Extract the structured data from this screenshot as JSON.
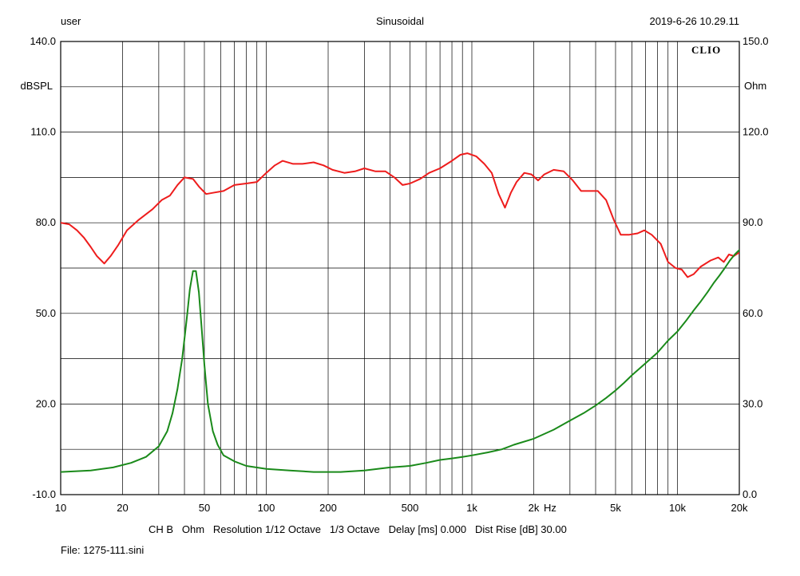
{
  "header": {
    "user": "user",
    "mode": "Sinusoidal",
    "datetime": "2019-6-26 10.29.11",
    "logo": "CLIO"
  },
  "footer": {
    "settings": "CH B   Ohm   Resolution 1/12 Octave   1/3 Octave   Delay [ms] 0.000   Dist Rise [dB] 30.00",
    "file": "File: 1275-111.sini"
  },
  "chart_data": {
    "type": "line",
    "x_scale": "log",
    "xlim": [
      10,
      20000
    ],
    "x_ticks": [
      {
        "value": 10,
        "label": "10"
      },
      {
        "value": 20,
        "label": "20"
      },
      {
        "value": 50,
        "label": "50"
      },
      {
        "value": 100,
        "label": "100"
      },
      {
        "value": 200,
        "label": "200"
      },
      {
        "value": 500,
        "label": "500"
      },
      {
        "value": 1000,
        "label": "1k"
      },
      {
        "value": 2000,
        "label": "2k"
      },
      {
        "value": 5000,
        "label": "5k"
      },
      {
        "value": 10000,
        "label": "10k"
      },
      {
        "value": 20000,
        "label": "20k"
      }
    ],
    "x_unit_label": "Hz",
    "y_left": {
      "label": "dBSPL",
      "lim": [
        -10,
        140
      ],
      "ticks": [
        "-10.0",
        "20.0",
        "50.0",
        "80.0",
        "110.0",
        "140.0"
      ]
    },
    "y_right": {
      "label": "Ohm",
      "lim": [
        0,
        150
      ],
      "ticks": [
        "0.0",
        "30.0",
        "60.0",
        "90.0",
        "120.0",
        "150.0"
      ]
    },
    "grid": true,
    "series": [
      {
        "axis": "left",
        "color": "#ee1c1c",
        "points": [
          [
            10,
            80
          ],
          [
            11,
            79.5
          ],
          [
            12,
            77.5
          ],
          [
            13,
            75
          ],
          [
            14,
            72
          ],
          [
            15,
            69
          ],
          [
            16.3,
            66.5
          ],
          [
            17.5,
            69
          ],
          [
            19,
            72.5
          ],
          [
            21,
            77.5
          ],
          [
            24,
            81
          ],
          [
            28,
            84.5
          ],
          [
            31,
            87.5
          ],
          [
            34,
            89
          ],
          [
            37,
            92.5
          ],
          [
            40,
            95
          ],
          [
            44,
            94.5
          ],
          [
            47,
            92
          ],
          [
            51,
            89.5
          ],
          [
            56,
            90
          ],
          [
            62,
            90.5
          ],
          [
            70,
            92.5
          ],
          [
            80,
            93
          ],
          [
            90,
            93.5
          ],
          [
            100,
            96.5
          ],
          [
            110,
            99
          ],
          [
            120,
            100.5
          ],
          [
            135,
            99.5
          ],
          [
            150,
            99.5
          ],
          [
            170,
            100
          ],
          [
            190,
            99
          ],
          [
            210,
            97.5
          ],
          [
            240,
            96.5
          ],
          [
            270,
            97
          ],
          [
            300,
            98
          ],
          [
            340,
            97
          ],
          [
            380,
            97
          ],
          [
            420,
            95
          ],
          [
            460,
            92.5
          ],
          [
            500,
            93
          ],
          [
            560,
            94.5
          ],
          [
            620,
            96.5
          ],
          [
            700,
            98
          ],
          [
            800,
            100.5
          ],
          [
            880,
            102.5
          ],
          [
            950,
            103
          ],
          [
            1050,
            102
          ],
          [
            1150,
            99.5
          ],
          [
            1250,
            96.5
          ],
          [
            1350,
            89.5
          ],
          [
            1450,
            85
          ],
          [
            1550,
            90
          ],
          [
            1650,
            93.5
          ],
          [
            1800,
            96.5
          ],
          [
            1950,
            96
          ],
          [
            2100,
            94
          ],
          [
            2250,
            96
          ],
          [
            2500,
            97.5
          ],
          [
            2800,
            97
          ],
          [
            3100,
            94
          ],
          [
            3400,
            90.5
          ],
          [
            3700,
            90.5
          ],
          [
            4100,
            90.5
          ],
          [
            4500,
            87.5
          ],
          [
            4900,
            81
          ],
          [
            5300,
            76
          ],
          [
            5800,
            76
          ],
          [
            6400,
            76.5
          ],
          [
            6900,
            77.5
          ],
          [
            7500,
            76
          ],
          [
            8300,
            73
          ],
          [
            9000,
            67
          ],
          [
            9800,
            65
          ],
          [
            10500,
            64.5
          ],
          [
            11200,
            62
          ],
          [
            12000,
            63
          ],
          [
            13000,
            65.5
          ],
          [
            14500,
            67.5
          ],
          [
            15800,
            68.5
          ],
          [
            16800,
            67
          ],
          [
            17800,
            69.5
          ],
          [
            18800,
            69
          ],
          [
            19800,
            70
          ],
          [
            20400,
            69.5
          ],
          [
            21000,
            66.5
          ]
        ]
      },
      {
        "axis": "right",
        "color": "#1a8a1a",
        "points": [
          [
            10,
            7.5
          ],
          [
            14,
            8
          ],
          [
            18,
            9
          ],
          [
            22,
            10.5
          ],
          [
            26,
            12.5
          ],
          [
            30,
            16
          ],
          [
            33,
            21
          ],
          [
            35,
            27
          ],
          [
            37,
            35
          ],
          [
            39,
            45
          ],
          [
            41,
            58
          ],
          [
            42.5,
            68
          ],
          [
            44,
            74
          ],
          [
            45.5,
            74
          ],
          [
            47,
            67
          ],
          [
            48.5,
            55
          ],
          [
            50,
            43
          ],
          [
            52,
            30
          ],
          [
            55,
            21
          ],
          [
            58,
            16.5
          ],
          [
            62,
            13
          ],
          [
            70,
            11
          ],
          [
            80,
            9.5
          ],
          [
            100,
            8.5
          ],
          [
            130,
            8
          ],
          [
            170,
            7.5
          ],
          [
            230,
            7.5
          ],
          [
            300,
            8
          ],
          [
            400,
            9
          ],
          [
            500,
            9.5
          ],
          [
            600,
            10.5
          ],
          [
            700,
            11.5
          ],
          [
            800,
            12
          ],
          [
            900,
            12.5
          ],
          [
            1000,
            13
          ],
          [
            1200,
            14
          ],
          [
            1400,
            15
          ],
          [
            1600,
            16.5
          ],
          [
            2000,
            18.5
          ],
          [
            2500,
            21.5
          ],
          [
            3000,
            24.5
          ],
          [
            3500,
            27
          ],
          [
            4000,
            29.5
          ],
          [
            4500,
            32
          ],
          [
            5000,
            34.5
          ],
          [
            5500,
            37
          ],
          [
            6000,
            39.5
          ],
          [
            7000,
            43.5
          ],
          [
            8000,
            47
          ],
          [
            9000,
            51
          ],
          [
            10000,
            54
          ],
          [
            11000,
            57.5
          ],
          [
            12000,
            61
          ],
          [
            13000,
            64
          ],
          [
            14000,
            67
          ],
          [
            15000,
            70
          ],
          [
            16000,
            72.5
          ],
          [
            17000,
            75
          ],
          [
            18000,
            77.5
          ],
          [
            19000,
            79.5
          ],
          [
            20000,
            81
          ],
          [
            21000,
            82.5
          ]
        ]
      }
    ]
  }
}
